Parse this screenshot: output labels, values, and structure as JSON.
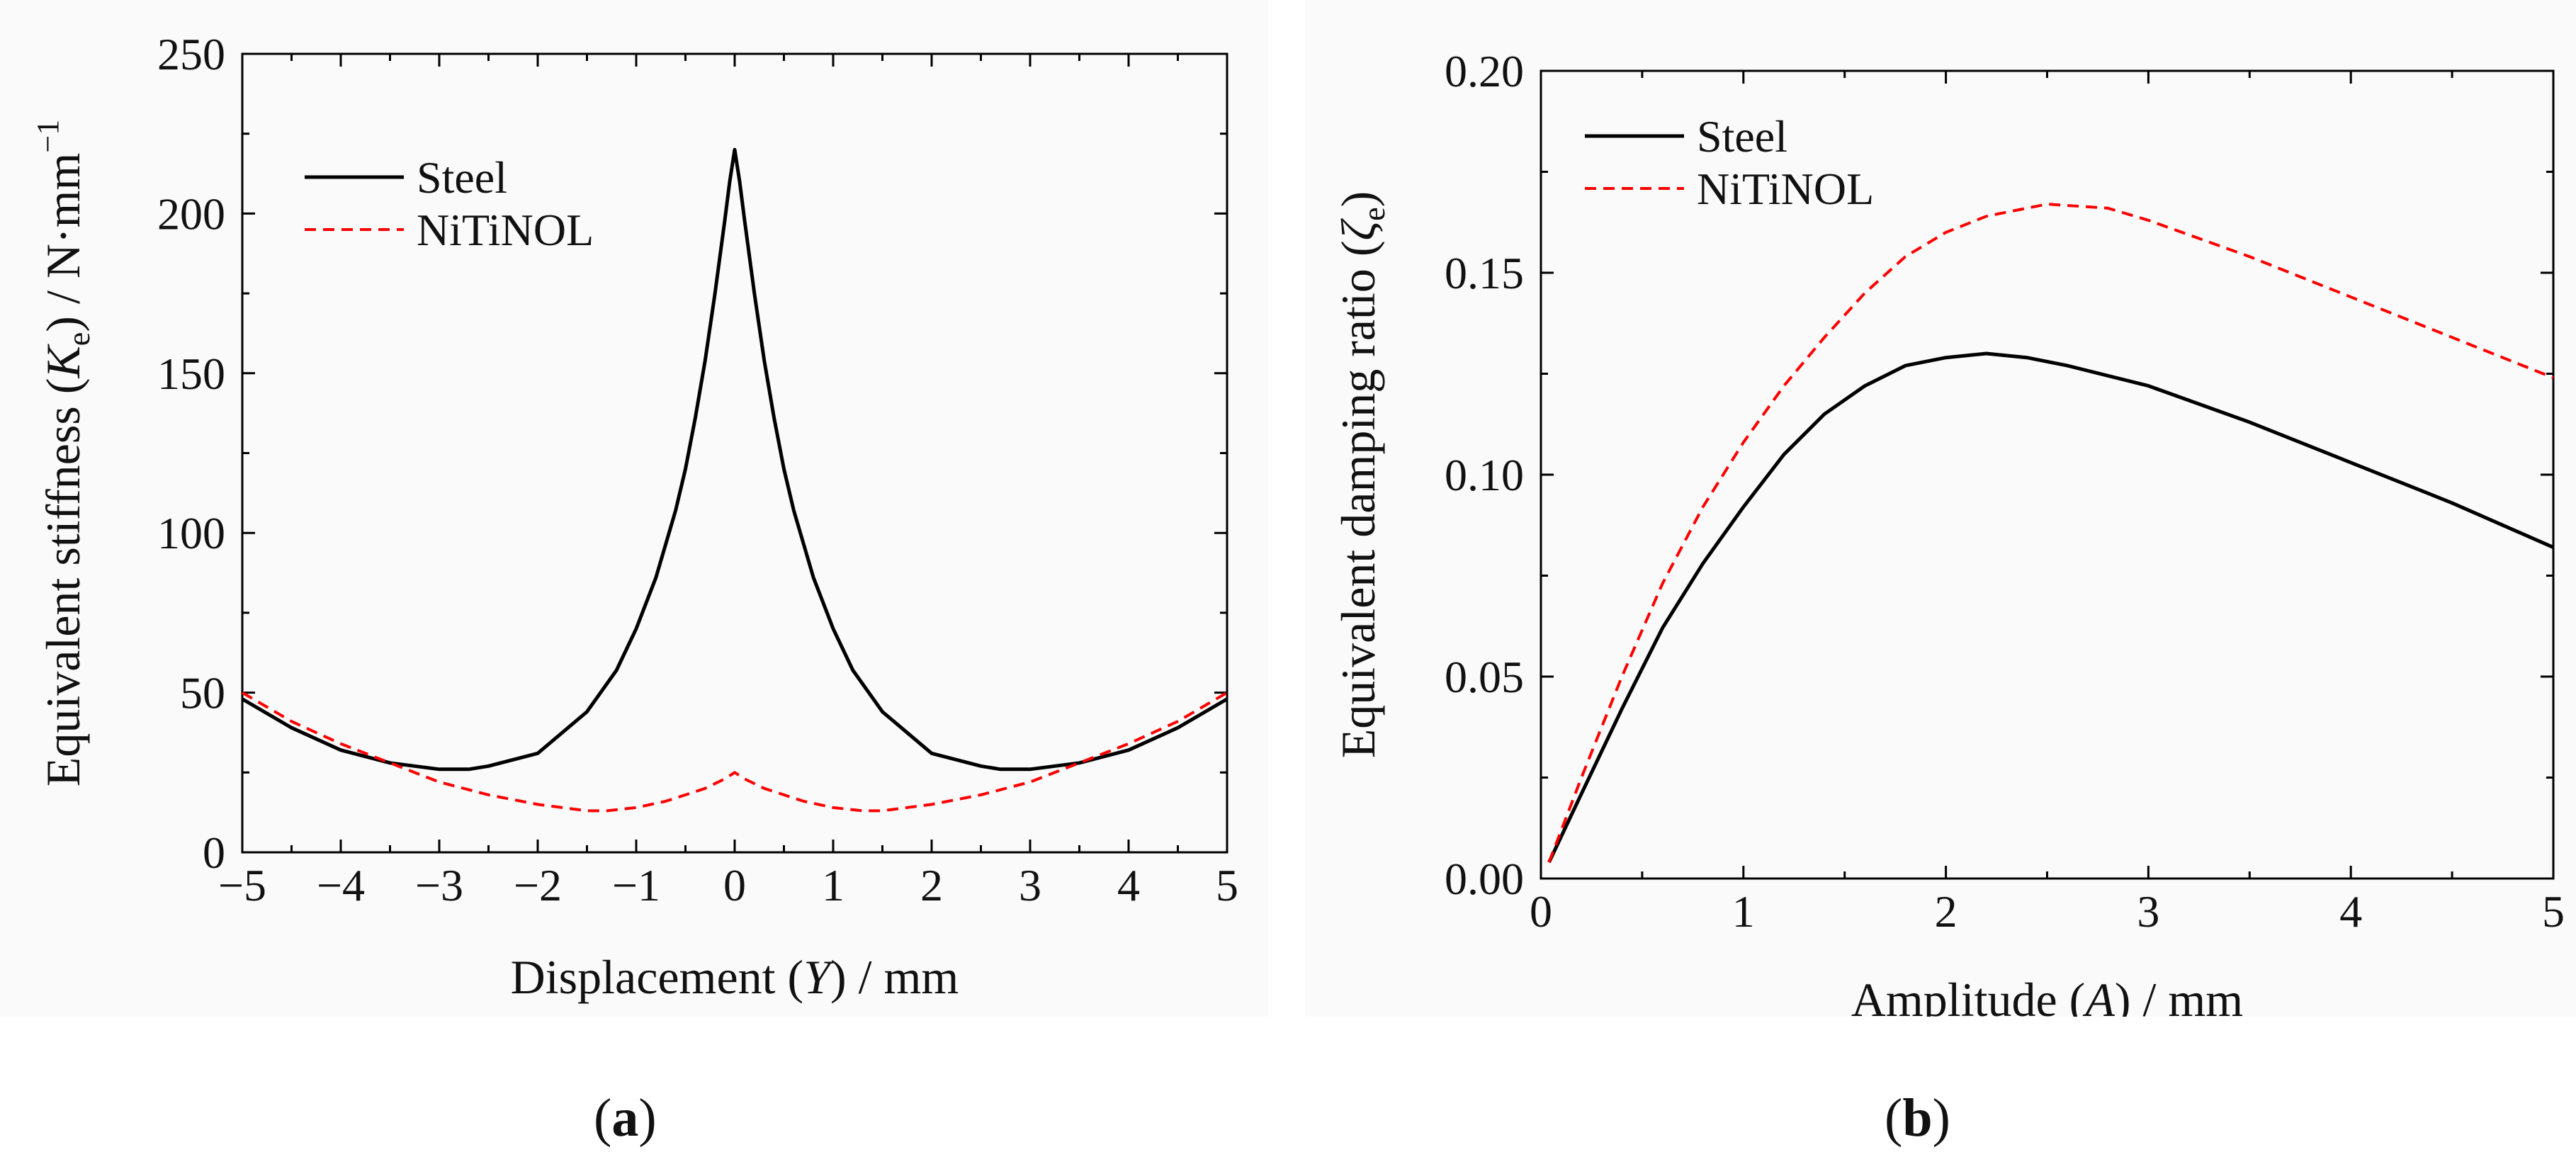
{
  "chart_data": [
    {
      "id": "a",
      "type": "line",
      "panel_label": "a",
      "xlabel_pre": "Displacement (",
      "xlabel_var": "Y",
      "xlabel_post": ") / mm",
      "ylabel_pre": "Equivalent stiffness (",
      "ylabel_var": "K",
      "ylabel_sub": "e",
      "ylabel_post": ") / N·mm",
      "ylabel_sup": "−1",
      "xlim": [
        -5,
        5
      ],
      "ylim": [
        0,
        250
      ],
      "xticks": [
        -5,
        -4,
        -3,
        -2,
        -1,
        0,
        1,
        2,
        3,
        4,
        5
      ],
      "xtick_labels": [
        "−5",
        "−4",
        "−3",
        "−2",
        "−1",
        "0",
        "1",
        "2",
        "3",
        "4",
        "5"
      ],
      "yticks": [
        0,
        50,
        100,
        150,
        200,
        250
      ],
      "ytick_labels": [
        "0",
        "50",
        "100",
        "150",
        "200",
        "250"
      ],
      "legend_position": "top-left",
      "series": [
        {
          "name": "Steel",
          "color": "#000000",
          "dash": "solid",
          "x": [
            -5,
            -4.5,
            -4,
            -3.5,
            -3,
            -2.7,
            -2.5,
            -2,
            -1.5,
            -1.2,
            -1,
            -0.8,
            -0.6,
            -0.5,
            -0.4,
            -0.3,
            -0.2,
            -0.1,
            -0.05,
            0,
            0.05,
            0.1,
            0.2,
            0.3,
            0.4,
            0.5,
            0.6,
            0.8,
            1,
            1.2,
            1.5,
            2,
            2.5,
            2.7,
            3,
            3.5,
            4,
            4.5,
            5
          ],
          "y": [
            48,
            39,
            32,
            28,
            26,
            26,
            27,
            31,
            44,
            57,
            70,
            86,
            107,
            120,
            136,
            154,
            175,
            198,
            210,
            220,
            210,
            198,
            175,
            154,
            136,
            120,
            107,
            86,
            70,
            57,
            44,
            31,
            27,
            26,
            26,
            28,
            32,
            39,
            48
          ]
        },
        {
          "name": "NiTiNOL",
          "color": "#ff0000",
          "dash": "dashed",
          "x": [
            -5,
            -4.5,
            -4,
            -3.5,
            -3,
            -2.5,
            -2,
            -1.5,
            -1.3,
            -1,
            -0.7,
            -0.5,
            -0.3,
            -0.1,
            0,
            0.1,
            0.3,
            0.5,
            0.7,
            1,
            1.3,
            1.5,
            2,
            2.5,
            3,
            3.5,
            4,
            4.5,
            5
          ],
          "y": [
            50,
            41,
            34,
            28,
            22,
            18,
            15,
            13,
            13,
            14,
            16,
            18,
            20,
            23,
            25,
            23,
            20,
            18,
            16,
            14,
            13,
            13,
            15,
            18,
            22,
            28,
            34,
            41,
            50
          ]
        }
      ]
    },
    {
      "id": "b",
      "type": "line",
      "panel_label": "b",
      "xlabel_pre": "Amplitude (",
      "xlabel_var": "A",
      "xlabel_post": ") / mm",
      "ylabel_pre": "Equivalent damping ratio (",
      "ylabel_var": "ζ",
      "ylabel_sub": "e",
      "ylabel_post": ")",
      "ylabel_sup": "",
      "xlim": [
        0,
        5
      ],
      "ylim": [
        0,
        0.2
      ],
      "xticks": [
        0,
        1,
        2,
        3,
        4,
        5
      ],
      "xtick_labels": [
        "0",
        "1",
        "2",
        "3",
        "4",
        "5"
      ],
      "yticks": [
        0,
        0.05,
        0.1,
        0.15,
        0.2
      ],
      "ytick_labels": [
        "0.00",
        "0.05",
        "0.10",
        "0.15",
        "0.20"
      ],
      "legend_position": "top-left",
      "series": [
        {
          "name": "Steel",
          "color": "#000000",
          "dash": "solid",
          "x": [
            0.04,
            0.2,
            0.4,
            0.6,
            0.8,
            1.0,
            1.2,
            1.4,
            1.6,
            1.8,
            2.0,
            2.2,
            2.4,
            2.6,
            3.0,
            3.5,
            4.0,
            4.5,
            5.0
          ],
          "y": [
            0.004,
            0.021,
            0.042,
            0.062,
            0.078,
            0.092,
            0.105,
            0.115,
            0.122,
            0.127,
            0.129,
            0.13,
            0.129,
            0.127,
            0.122,
            0.113,
            0.103,
            0.093,
            0.082
          ]
        },
        {
          "name": "NiTiNOL",
          "color": "#ff0000",
          "dash": "dashed",
          "x": [
            0.04,
            0.2,
            0.4,
            0.6,
            0.8,
            1.0,
            1.2,
            1.4,
            1.6,
            1.8,
            2.0,
            2.2,
            2.5,
            2.8,
            3.0,
            3.5,
            4.0,
            4.5,
            5.0
          ],
          "y": [
            0.004,
            0.025,
            0.05,
            0.073,
            0.092,
            0.108,
            0.122,
            0.134,
            0.145,
            0.154,
            0.16,
            0.164,
            0.167,
            0.166,
            0.163,
            0.154,
            0.144,
            0.134,
            0.124
          ]
        }
      ]
    }
  ]
}
